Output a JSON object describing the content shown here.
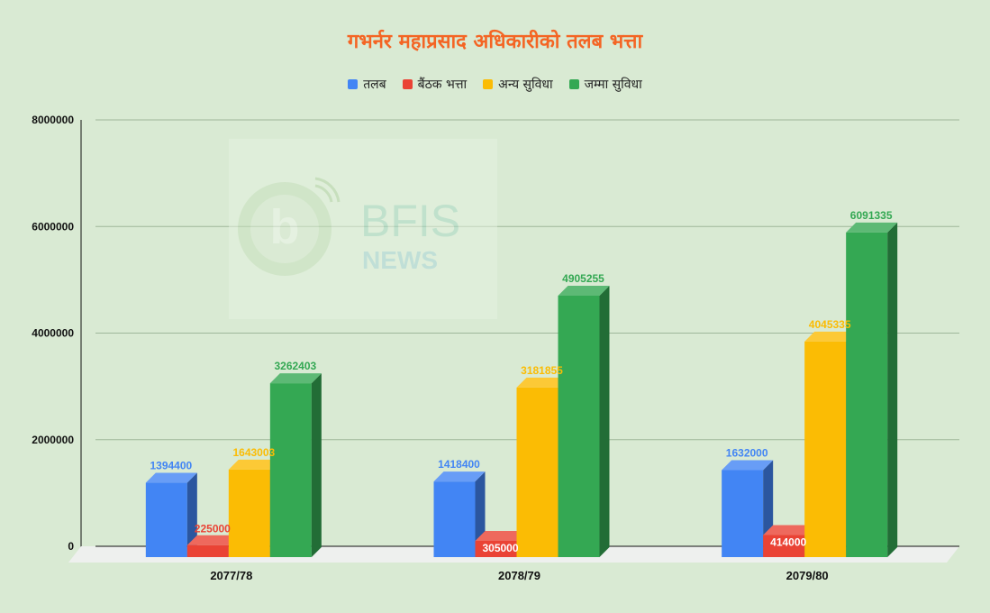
{
  "watermark": {
    "brand": "BFIS",
    "sub": "NEWS"
  },
  "chart_data": {
    "type": "bar",
    "title": "गभर्नर महाप्रसाद अधिकारीको तलब भत्ता",
    "xlabel": "",
    "ylabel": "",
    "categories": [
      "2077/78",
      "2078/79",
      "2079/80"
    ],
    "ylim": [
      0,
      8000000
    ],
    "yticks": [
      0,
      2000000,
      4000000,
      6000000,
      8000000
    ],
    "grid": true,
    "legend_position": "top",
    "style": "3d",
    "series": [
      {
        "name": "तलब",
        "color": "#4285f4",
        "values": [
          1394400,
          1418400,
          1632000
        ]
      },
      {
        "name": "बैंठक भत्ता",
        "color": "#ea4335",
        "values": [
          225000,
          305000,
          414000
        ]
      },
      {
        "name": "अन्य सुविधा",
        "color": "#fbbc04",
        "values": [
          1643003,
          3181855,
          4045335
        ]
      },
      {
        "name": "जम्मा सुविधा",
        "color": "#34a853",
        "values": [
          3262403,
          4905255,
          6091335
        ]
      }
    ]
  }
}
